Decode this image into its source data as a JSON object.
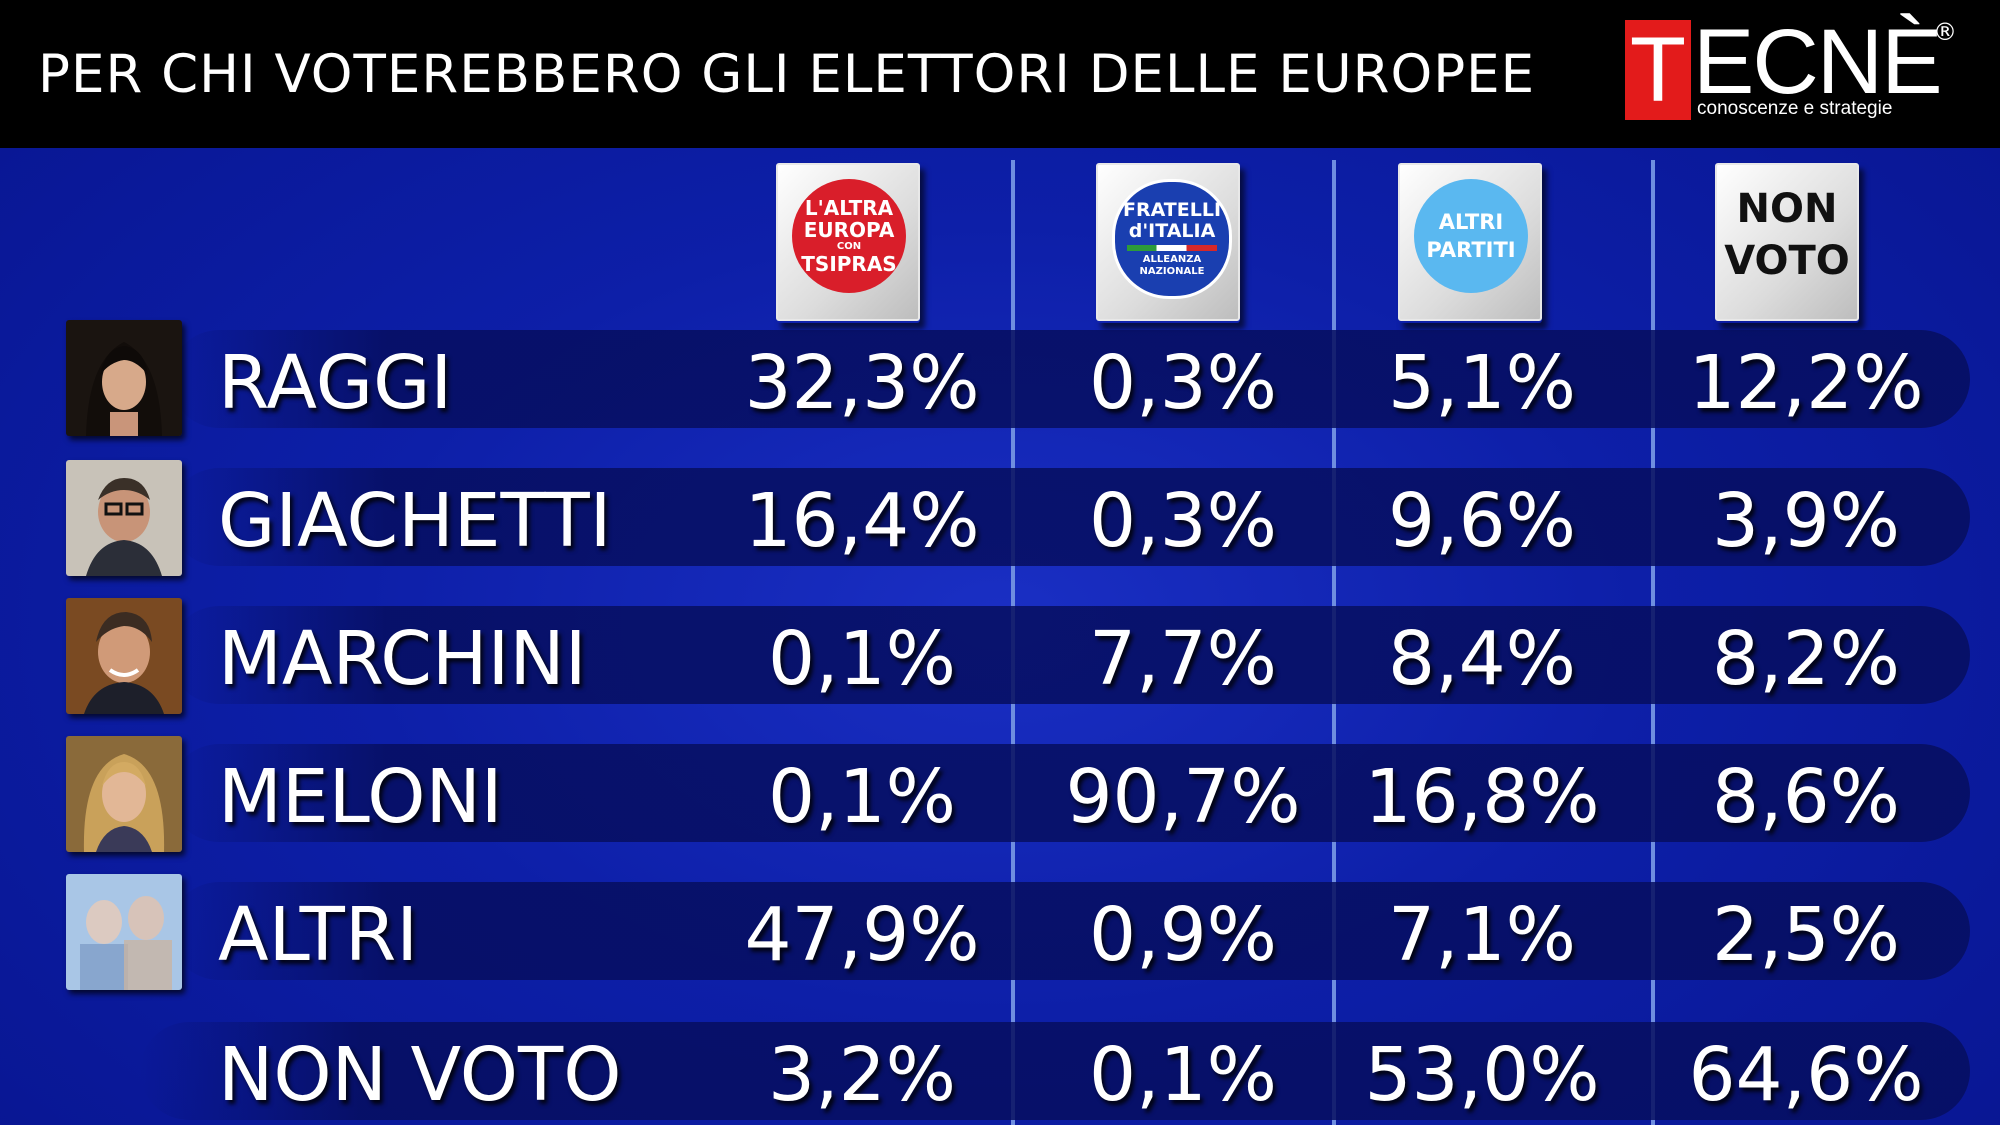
{
  "header": {
    "title": "PER CHI VOTEREBBERO GLI ELETTORI DELLE EUROPEE",
    "logo": {
      "initial": "T",
      "rest": "ECNÈ",
      "registered": "®",
      "tagline": "conoscenze e strategie",
      "color": "#e31b1b"
    }
  },
  "columns": [
    {
      "lines": [
        "L'ALTRA",
        "EUROPA",
        "CON",
        "TSIPRAS"
      ],
      "color": "#d91e2a"
    },
    {
      "lines": [
        "FRATELLI",
        "d'ITALIA",
        "ALLEANZA",
        "NAZIONALE"
      ],
      "color": "#1a3fb0"
    },
    {
      "lines": [
        "ALTRI",
        "PARTITI"
      ],
      "color": "#5ab8f0"
    },
    {
      "lines": [
        "NON",
        "VOTO"
      ],
      "color": "#ffffff"
    }
  ],
  "chart_data": {
    "type": "table",
    "title": "PER CHI VOTEREBBERO GLI ELETTORI DELLE EUROPEE",
    "columns": [
      "L'ALTRA EUROPA CON TSIPRAS",
      "FRATELLI d'ITALIA ALLEANZA NAZIONALE",
      "ALTRI PARTITI",
      "NON VOTO"
    ],
    "rows": [
      {
        "label": "RAGGI",
        "values": [
          "32,3%",
          "0,3%",
          "5,1%",
          "12,2%"
        ]
      },
      {
        "label": "GIACHETTI",
        "values": [
          "16,4%",
          "0,3%",
          "9,6%",
          "3,9%"
        ]
      },
      {
        "label": "MARCHINI",
        "values": [
          "0,1%",
          "7,7%",
          "8,4%",
          "8,2%"
        ]
      },
      {
        "label": "MELONI",
        "values": [
          "0,1%",
          "90,7%",
          "16,8%",
          "8,6%"
        ]
      },
      {
        "label": "ALTRI",
        "values": [
          "47,9%",
          "0,9%",
          "7,1%",
          "2,5%"
        ]
      },
      {
        "label": "NON VOTO",
        "values": [
          "3,2%",
          "0,1%",
          "53,0%",
          "64,6%"
        ]
      }
    ]
  }
}
